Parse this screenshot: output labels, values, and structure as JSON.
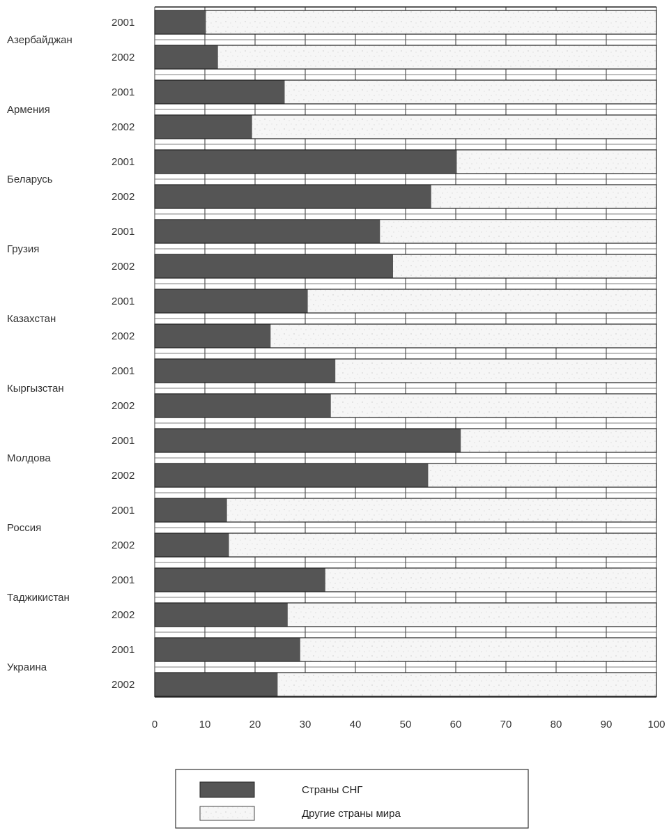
{
  "chart_data": {
    "type": "bar",
    "orientation": "horizontal",
    "stacked": true,
    "countries": [
      "Азербайджан",
      "Армения",
      "Беларусь",
      "Грузия",
      "Казахстан",
      "Кыргызстан",
      "Молдова",
      "Россия",
      "Таджикистан",
      "Украина"
    ],
    "years": [
      "2001",
      "2002"
    ],
    "series": [
      {
        "name": "Страны СНГ",
        "color": "#555555",
        "values": [
          [
            10.2,
            12.6
          ],
          [
            25.9,
            19.4
          ],
          [
            60.2,
            55.1
          ],
          [
            44.9,
            47.5
          ],
          [
            30.5,
            23.1
          ],
          [
            36.0,
            35.1
          ],
          [
            61.0,
            54.5
          ],
          [
            14.4,
            14.8
          ],
          [
            34.0,
            26.5
          ],
          [
            29.0,
            24.5
          ]
        ]
      },
      {
        "name": "Другие страны мира",
        "color": "#f6f6f6",
        "values": [
          [
            89.8,
            87.4
          ],
          [
            74.1,
            80.6
          ],
          [
            39.8,
            44.9
          ],
          [
            55.1,
            52.5
          ],
          [
            69.5,
            76.9
          ],
          [
            64.0,
            64.9
          ],
          [
            39.0,
            45.5
          ],
          [
            85.6,
            85.2
          ],
          [
            66.0,
            73.5
          ],
          [
            71.0,
            75.5
          ]
        ]
      }
    ],
    "xlim": [
      0,
      100
    ],
    "xticks": [
      "0",
      "10",
      "20",
      "30",
      "40",
      "50",
      "60",
      "70",
      "80",
      "90",
      "100"
    ],
    "grid": true,
    "legend_position": "bottom-center",
    "title": "",
    "xlabel": "",
    "ylabel": ""
  }
}
